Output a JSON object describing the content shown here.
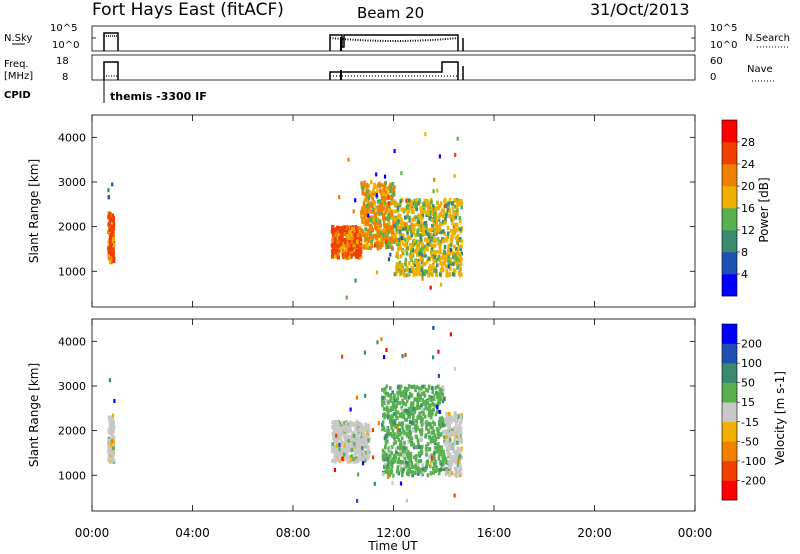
{
  "header": {
    "station": "Fort Hays East (fitACF)",
    "beam": "Beam 20",
    "date": "31/Oct/2013"
  },
  "summary": {
    "nsky_label": "N.Sky",
    "nsky_scale": [
      "10^5",
      "10^0"
    ],
    "nsearch_label": "N.Search",
    "nsearch_scale": [
      "10^5",
      "10^0"
    ],
    "freq_label_1": "Freq.",
    "freq_label_2": "[MHz]",
    "freq_scale": [
      "18",
      "8"
    ],
    "nave_label": "Nave",
    "nave_scale": [
      "60",
      "0"
    ],
    "cpid_label": "CPID",
    "cpid_text": "themis -3300 IF"
  },
  "colors": {
    "power": [
      "#0000ff",
      "#1e50b4",
      "#3a8a6e",
      "#58b050",
      "#f0b000",
      "#f08000",
      "#f04000",
      "#ff0000"
    ],
    "velocity": [
      "#ff0000",
      "#f04000",
      "#f08000",
      "#f0b000",
      "#c8c8c8",
      "#58b050",
      "#3a8a6e",
      "#1e50b4",
      "#0000ff"
    ]
  },
  "chart_data": [
    {
      "type": "heatmap",
      "name": "power",
      "title": "",
      "xlabel": "",
      "ylabel": "Slant Range [km]",
      "ylim": [
        200,
        4500
      ],
      "yticks": [
        "1000",
        "2000",
        "3000",
        "4000"
      ],
      "colorbar_label": "Power [dB]",
      "colorbar_ticks": [
        "4",
        "8",
        "12",
        "16",
        "20",
        "24",
        "28"
      ],
      "x_range_hours": [
        0,
        24
      ],
      "echo_regions": [
        {
          "start": "00:36",
          "end": "00:50",
          "range_km": [
            1200,
            2300
          ],
          "level_db": 26
        },
        {
          "start": "09:30",
          "end": "10:40",
          "range_km": [
            1300,
            2000
          ],
          "level_db": 24
        },
        {
          "start": "10:40",
          "end": "12:00",
          "range_km": [
            1500,
            3000
          ],
          "level_db": 20
        },
        {
          "start": "12:00",
          "end": "14:40",
          "range_km": [
            900,
            2600
          ],
          "level_db": 18
        }
      ]
    },
    {
      "type": "heatmap",
      "name": "velocity",
      "title": "",
      "xlabel": "Time UT",
      "ylabel": "Slant Range [km]",
      "ylim": [
        200,
        4500
      ],
      "yticks": [
        "1000",
        "2000",
        "3000",
        "4000"
      ],
      "colorbar_label": "Velocity [m s-1]",
      "colorbar_ticks": [
        "200",
        "100",
        "50",
        "15",
        "-15",
        "-50",
        "-100",
        "-200"
      ],
      "x_range_hours": [
        0,
        24
      ],
      "xticks": [
        "00:00",
        "04:00",
        "08:00",
        "12:00",
        "16:00",
        "20:00",
        "00:00"
      ],
      "echo_regions": [
        {
          "start": "00:36",
          "end": "00:50",
          "range_km": [
            1300,
            2300
          ],
          "velocity_ms": 0
        },
        {
          "start": "09:30",
          "end": "11:00",
          "range_km": [
            1300,
            2200
          ],
          "velocity_ms": 0
        },
        {
          "start": "11:30",
          "end": "14:00",
          "range_km": [
            1000,
            3000
          ],
          "velocity_ms": 40
        },
        {
          "start": "14:00",
          "end": "14:40",
          "range_km": [
            1000,
            2400
          ],
          "velocity_ms": 0
        }
      ]
    }
  ]
}
